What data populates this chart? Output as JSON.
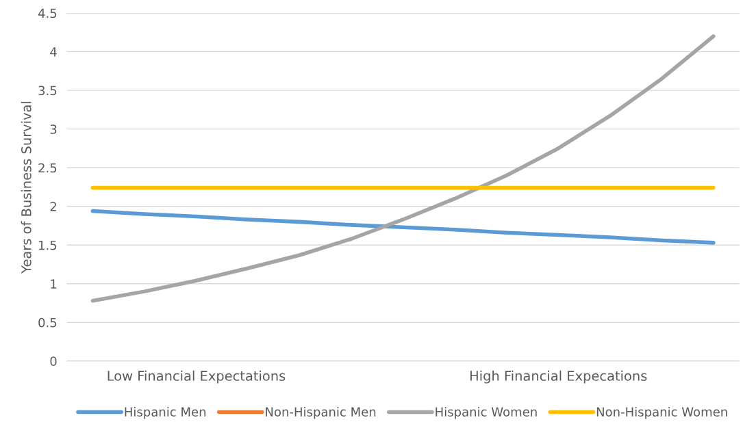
{
  "chart_data": {
    "type": "line",
    "ylabel": "Years of Business Survival",
    "categories": [
      null,
      null,
      "Low Financial Expectations",
      null,
      null,
      null,
      null,
      null,
      null,
      "High Financial Expecations",
      null,
      null,
      null
    ],
    "series": [
      {
        "name": "Hispanic Men",
        "color": "#5b9bd5",
        "values": [
          1.94,
          1.9,
          1.87,
          1.83,
          1.8,
          1.76,
          1.73,
          1.7,
          1.66,
          1.63,
          1.6,
          1.56,
          1.53
        ]
      },
      {
        "name": "Non-Hispanic Men",
        "color": "#ed7d31",
        "values": [
          null,
          null,
          null,
          null,
          null,
          null,
          null,
          null,
          null,
          null,
          null,
          null,
          null
        ]
      },
      {
        "name": "Hispanic Women",
        "color": "#a5a5a5",
        "values": [
          0.78,
          0.9,
          1.04,
          1.2,
          1.37,
          1.58,
          1.83,
          2.1,
          2.4,
          2.75,
          3.17,
          3.65,
          4.2
        ]
      },
      {
        "name": "Non-Hispanic Women",
        "color": "#ffc000",
        "values": [
          2.24,
          2.24,
          2.24,
          2.24,
          2.24,
          2.24,
          2.24,
          2.24,
          2.24,
          2.24,
          2.24,
          2.24,
          2.24
        ]
      }
    ],
    "ylim": [
      0,
      4.5
    ],
    "yticks": [
      0,
      0.5,
      1,
      1.5,
      2,
      2.5,
      3,
      3.5,
      4,
      4.5
    ],
    "grid": "y",
    "legend": "bottom",
    "marker": "none",
    "line_style": "solid"
  }
}
